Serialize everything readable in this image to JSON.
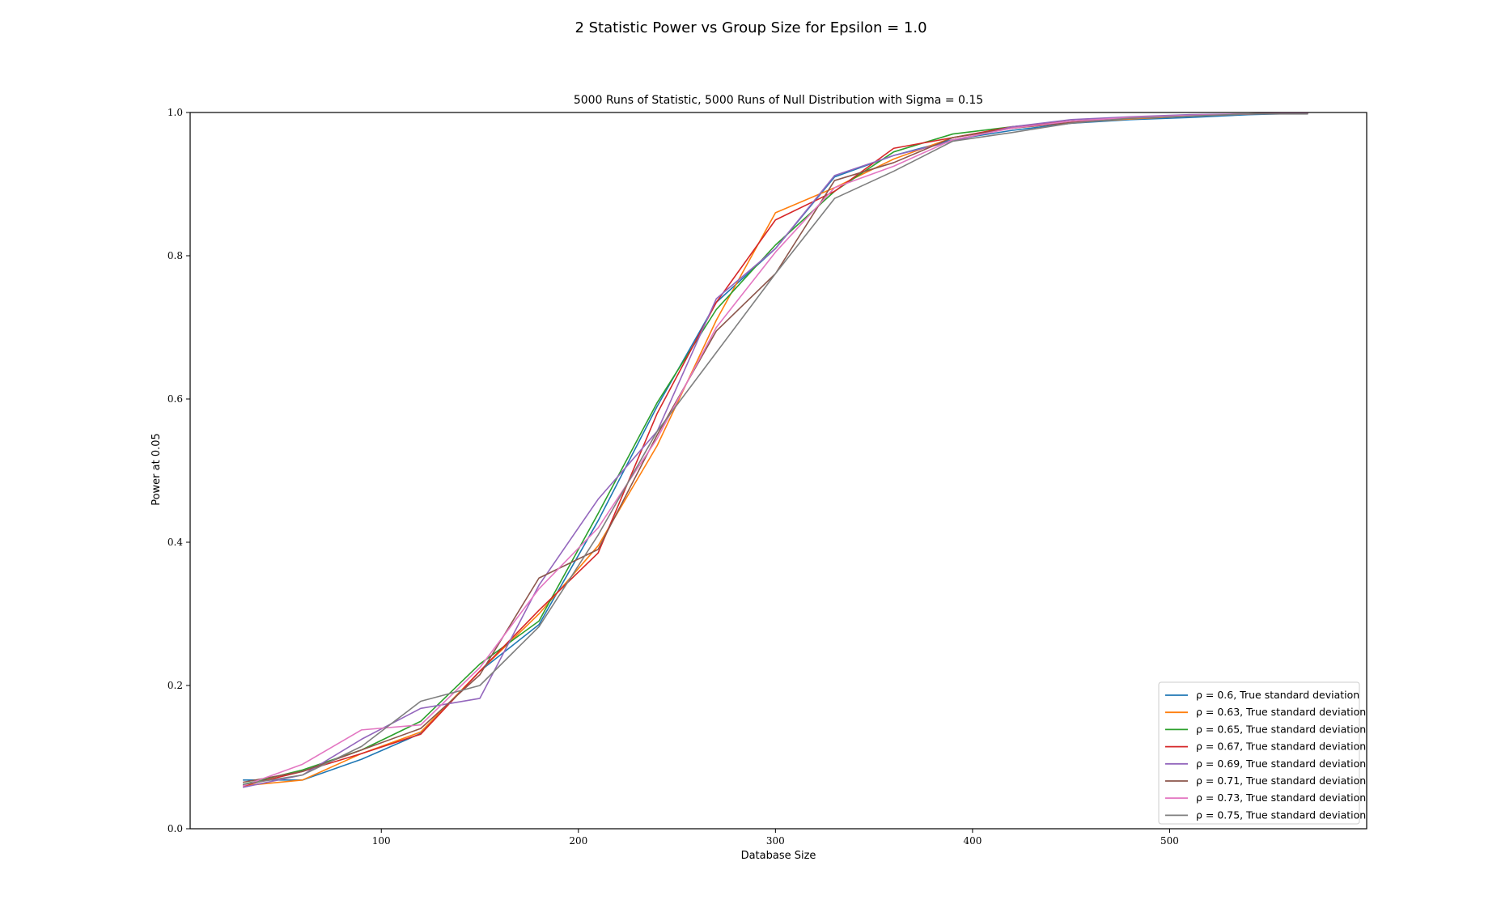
{
  "figure": {
    "suptitle": "2 Statistic Power vs Group Size for Epsilon = 1.0"
  },
  "chart_data": {
    "type": "line",
    "title": "5000 Runs of Statistic, 5000 Runs of Null Distribution with Sigma = 0.15",
    "xlabel": "Database Size",
    "ylabel": "Power at 0.05",
    "xlim": [
      3,
      600
    ],
    "ylim": [
      0.0,
      1.0
    ],
    "xticks": [
      100,
      200,
      300,
      400,
      500
    ],
    "yticks": [
      0.0,
      0.2,
      0.4,
      0.6,
      0.8,
      1.0
    ],
    "xtick_labels": [
      "100",
      "200",
      "300",
      "400",
      "500"
    ],
    "ytick_labels": [
      "0.0",
      "0.2",
      "0.4",
      "0.6",
      "0.8",
      "1.0"
    ],
    "grid": false,
    "legend_position": "lower-right",
    "x": [
      30,
      60,
      90,
      120,
      150,
      180,
      210,
      240,
      270,
      300,
      330,
      360,
      390,
      420,
      450,
      480,
      510,
      540,
      570
    ],
    "series": [
      {
        "name": "ρ = 0.6, True standard deviation",
        "color": "#1f77b4",
        "values": [
          0.068,
          0.068,
          0.097,
          0.133,
          0.22,
          0.285,
          0.43,
          0.59,
          0.735,
          0.81,
          0.91,
          0.94,
          0.962,
          0.975,
          0.985,
          0.99,
          0.993,
          0.997,
          0.999
        ]
      },
      {
        "name": "ρ = 0.63, True standard deviation",
        "color": "#ff7f0e",
        "values": [
          0.06,
          0.068,
          0.105,
          0.135,
          0.22,
          0.3,
          0.395,
          0.535,
          0.71,
          0.86,
          0.895,
          0.935,
          0.965,
          0.978,
          0.986,
          0.991,
          0.995,
          0.998,
          0.999
        ]
      },
      {
        "name": "ρ = 0.65, True standard deviation",
        "color": "#2ca02c",
        "values": [
          0.062,
          0.082,
          0.11,
          0.15,
          0.23,
          0.29,
          0.44,
          0.595,
          0.725,
          0.815,
          0.89,
          0.945,
          0.97,
          0.98,
          0.988,
          0.993,
          0.996,
          0.998,
          0.999
        ]
      },
      {
        "name": "ρ = 0.67, True standard deviation",
        "color": "#d62728",
        "values": [
          0.06,
          0.08,
          0.105,
          0.132,
          0.22,
          0.305,
          0.385,
          0.58,
          0.735,
          0.85,
          0.89,
          0.95,
          0.965,
          0.98,
          0.988,
          0.993,
          0.996,
          0.998,
          0.999
        ]
      },
      {
        "name": "ρ = 0.69, True standard deviation",
        "color": "#9467bd",
        "values": [
          0.058,
          0.075,
          0.125,
          0.168,
          0.182,
          0.34,
          0.46,
          0.555,
          0.74,
          0.81,
          0.912,
          0.94,
          0.96,
          0.98,
          0.99,
          0.994,
          0.997,
          0.998,
          0.999
        ]
      },
      {
        "name": "ρ = 0.71, True standard deviation",
        "color": "#8c564b",
        "values": [
          0.065,
          0.08,
          0.11,
          0.14,
          0.215,
          0.35,
          0.39,
          0.55,
          0.695,
          0.775,
          0.905,
          0.93,
          0.965,
          0.978,
          0.986,
          0.992,
          0.995,
          0.998,
          0.999
        ]
      },
      {
        "name": "ρ = 0.73, True standard deviation",
        "color": "#e377c2",
        "values": [
          0.06,
          0.09,
          0.138,
          0.145,
          0.225,
          0.335,
          0.42,
          0.545,
          0.7,
          0.805,
          0.895,
          0.925,
          0.962,
          0.978,
          0.988,
          0.993,
          0.996,
          0.998,
          0.999
        ]
      },
      {
        "name": "ρ = 0.75, True standard deviation",
        "color": "#7f7f7f",
        "values": [
          0.062,
          0.075,
          0.115,
          0.178,
          0.2,
          0.282,
          0.41,
          0.555,
          0.665,
          0.775,
          0.88,
          0.918,
          0.96,
          0.972,
          0.985,
          0.992,
          0.995,
          0.998,
          0.998
        ]
      }
    ]
  }
}
